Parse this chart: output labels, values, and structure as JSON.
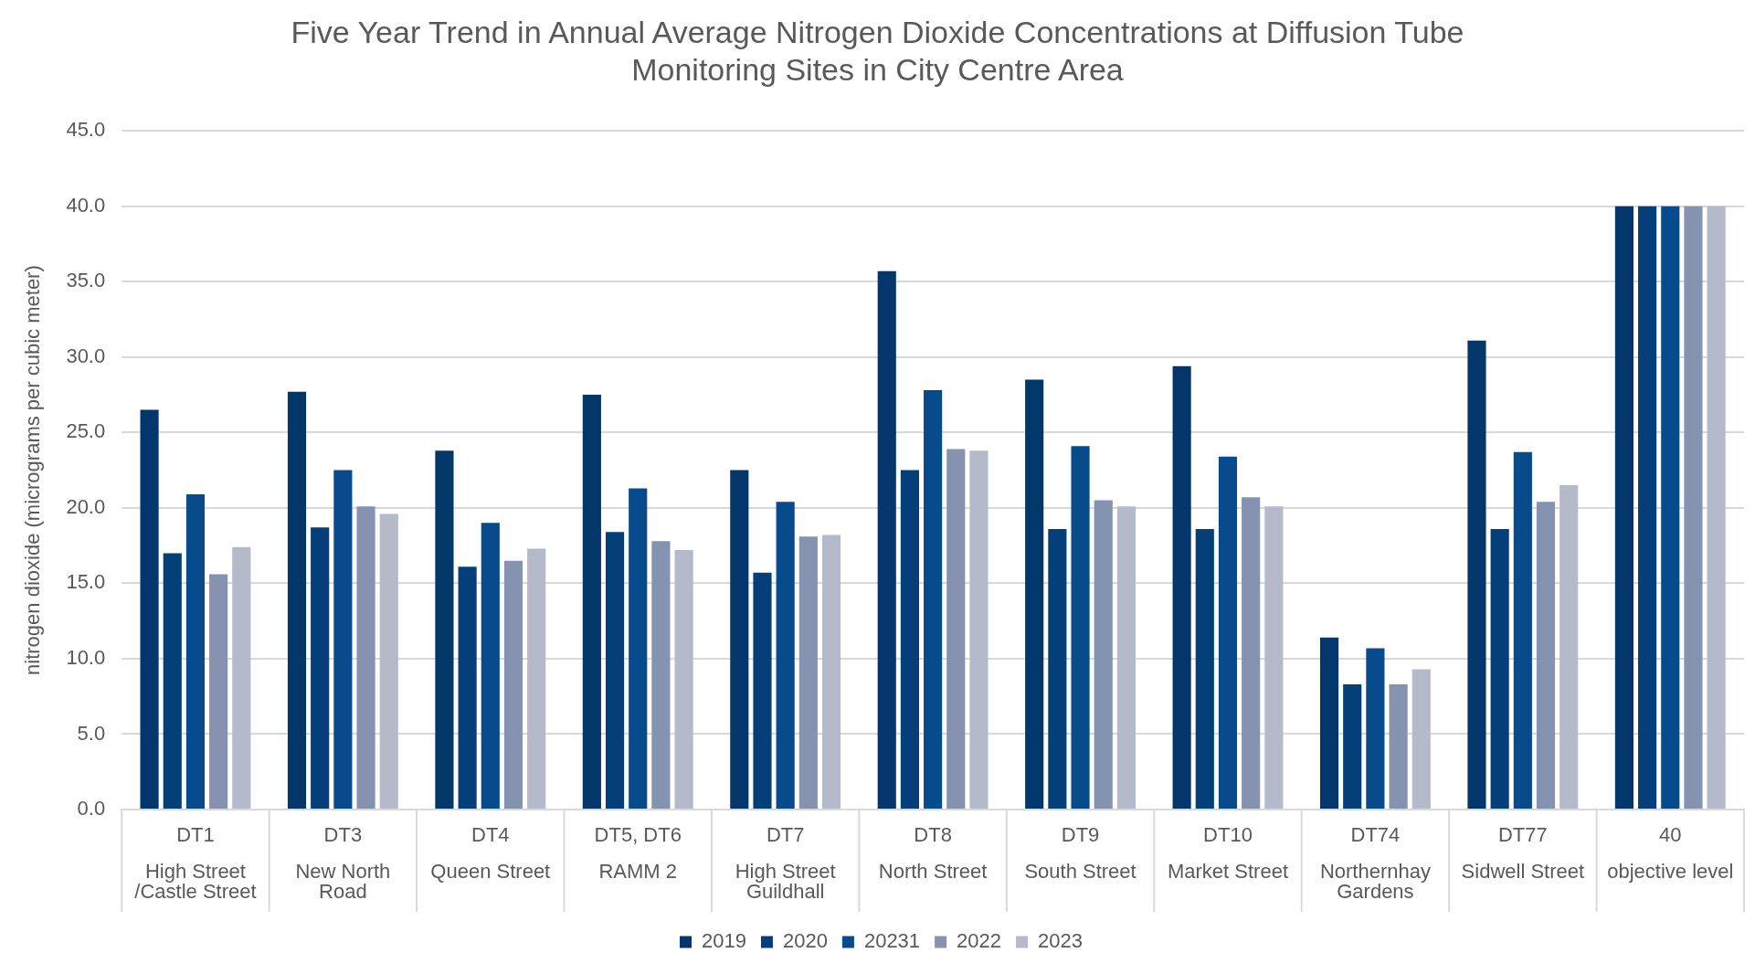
{
  "chart_data": {
    "type": "bar",
    "title": "Five Year Trend in Annual Average Nitrogen Dioxide Concentrations at Diffusion Tube Monitoring Sites in City Centre Area",
    "ylabel": "nitrogen dioxide (micrograms per cubic meter)",
    "categories": [
      "DT1\nHigh Street\n/Castle Street",
      "DT3\nNew North\nRoad",
      "DT4\nQueen Street",
      "DT5, DT6\nRAMM 2",
      "DT7\nHigh Street\nGuildhall",
      "DT8\nNorth Street",
      "DT9\nSouth Street",
      "DT10\nMarket Street",
      "DT74\nNorthernhay\nGardens",
      "DT77\nSidwell Street",
      "40\nobjective level"
    ],
    "series": [
      {
        "name": "2019",
        "color": "#03366a",
        "values": [
          26.5,
          27.7,
          23.8,
          27.5,
          22.5,
          35.7,
          28.5,
          29.4,
          11.4,
          31.1,
          40
        ]
      },
      {
        "name": "2020",
        "color": "#053f7a",
        "values": [
          17.0,
          18.7,
          16.1,
          18.4,
          15.7,
          22.5,
          18.6,
          18.6,
          8.3,
          18.6,
          40
        ]
      },
      {
        "name": "20231",
        "color": "#074b8c",
        "values": [
          20.9,
          22.5,
          19.0,
          21.3,
          20.4,
          27.8,
          24.1,
          23.4,
          10.7,
          23.7,
          40
        ]
      },
      {
        "name": "2022",
        "color": "#8592b0",
        "values": [
          15.6,
          20.1,
          16.5,
          17.8,
          18.1,
          23.9,
          20.5,
          20.7,
          8.3,
          20.4,
          40
        ]
      },
      {
        "name": "2023",
        "color": "#b5bacb",
        "values": [
          17.4,
          19.6,
          17.3,
          17.2,
          18.2,
          23.8,
          20.1,
          20.1,
          9.3,
          21.5,
          40
        ]
      }
    ],
    "ylim": [
      0,
      45
    ],
    "yticks": [
      {
        "value": 0,
        "label": "0.0"
      },
      {
        "value": 5,
        "label": "5.0"
      },
      {
        "value": 10,
        "label": "10.0"
      },
      {
        "value": 15,
        "label": "15.0"
      },
      {
        "value": 20,
        "label": "20.0"
      },
      {
        "value": 25,
        "label": "25.0"
      },
      {
        "value": 30,
        "label": "30.0"
      },
      {
        "value": 35,
        "label": "35.0"
      },
      {
        "value": 40,
        "label": "40.0"
      },
      {
        "value": 45,
        "label": "45.0"
      }
    ],
    "grid": "y",
    "legend": "bottom"
  }
}
